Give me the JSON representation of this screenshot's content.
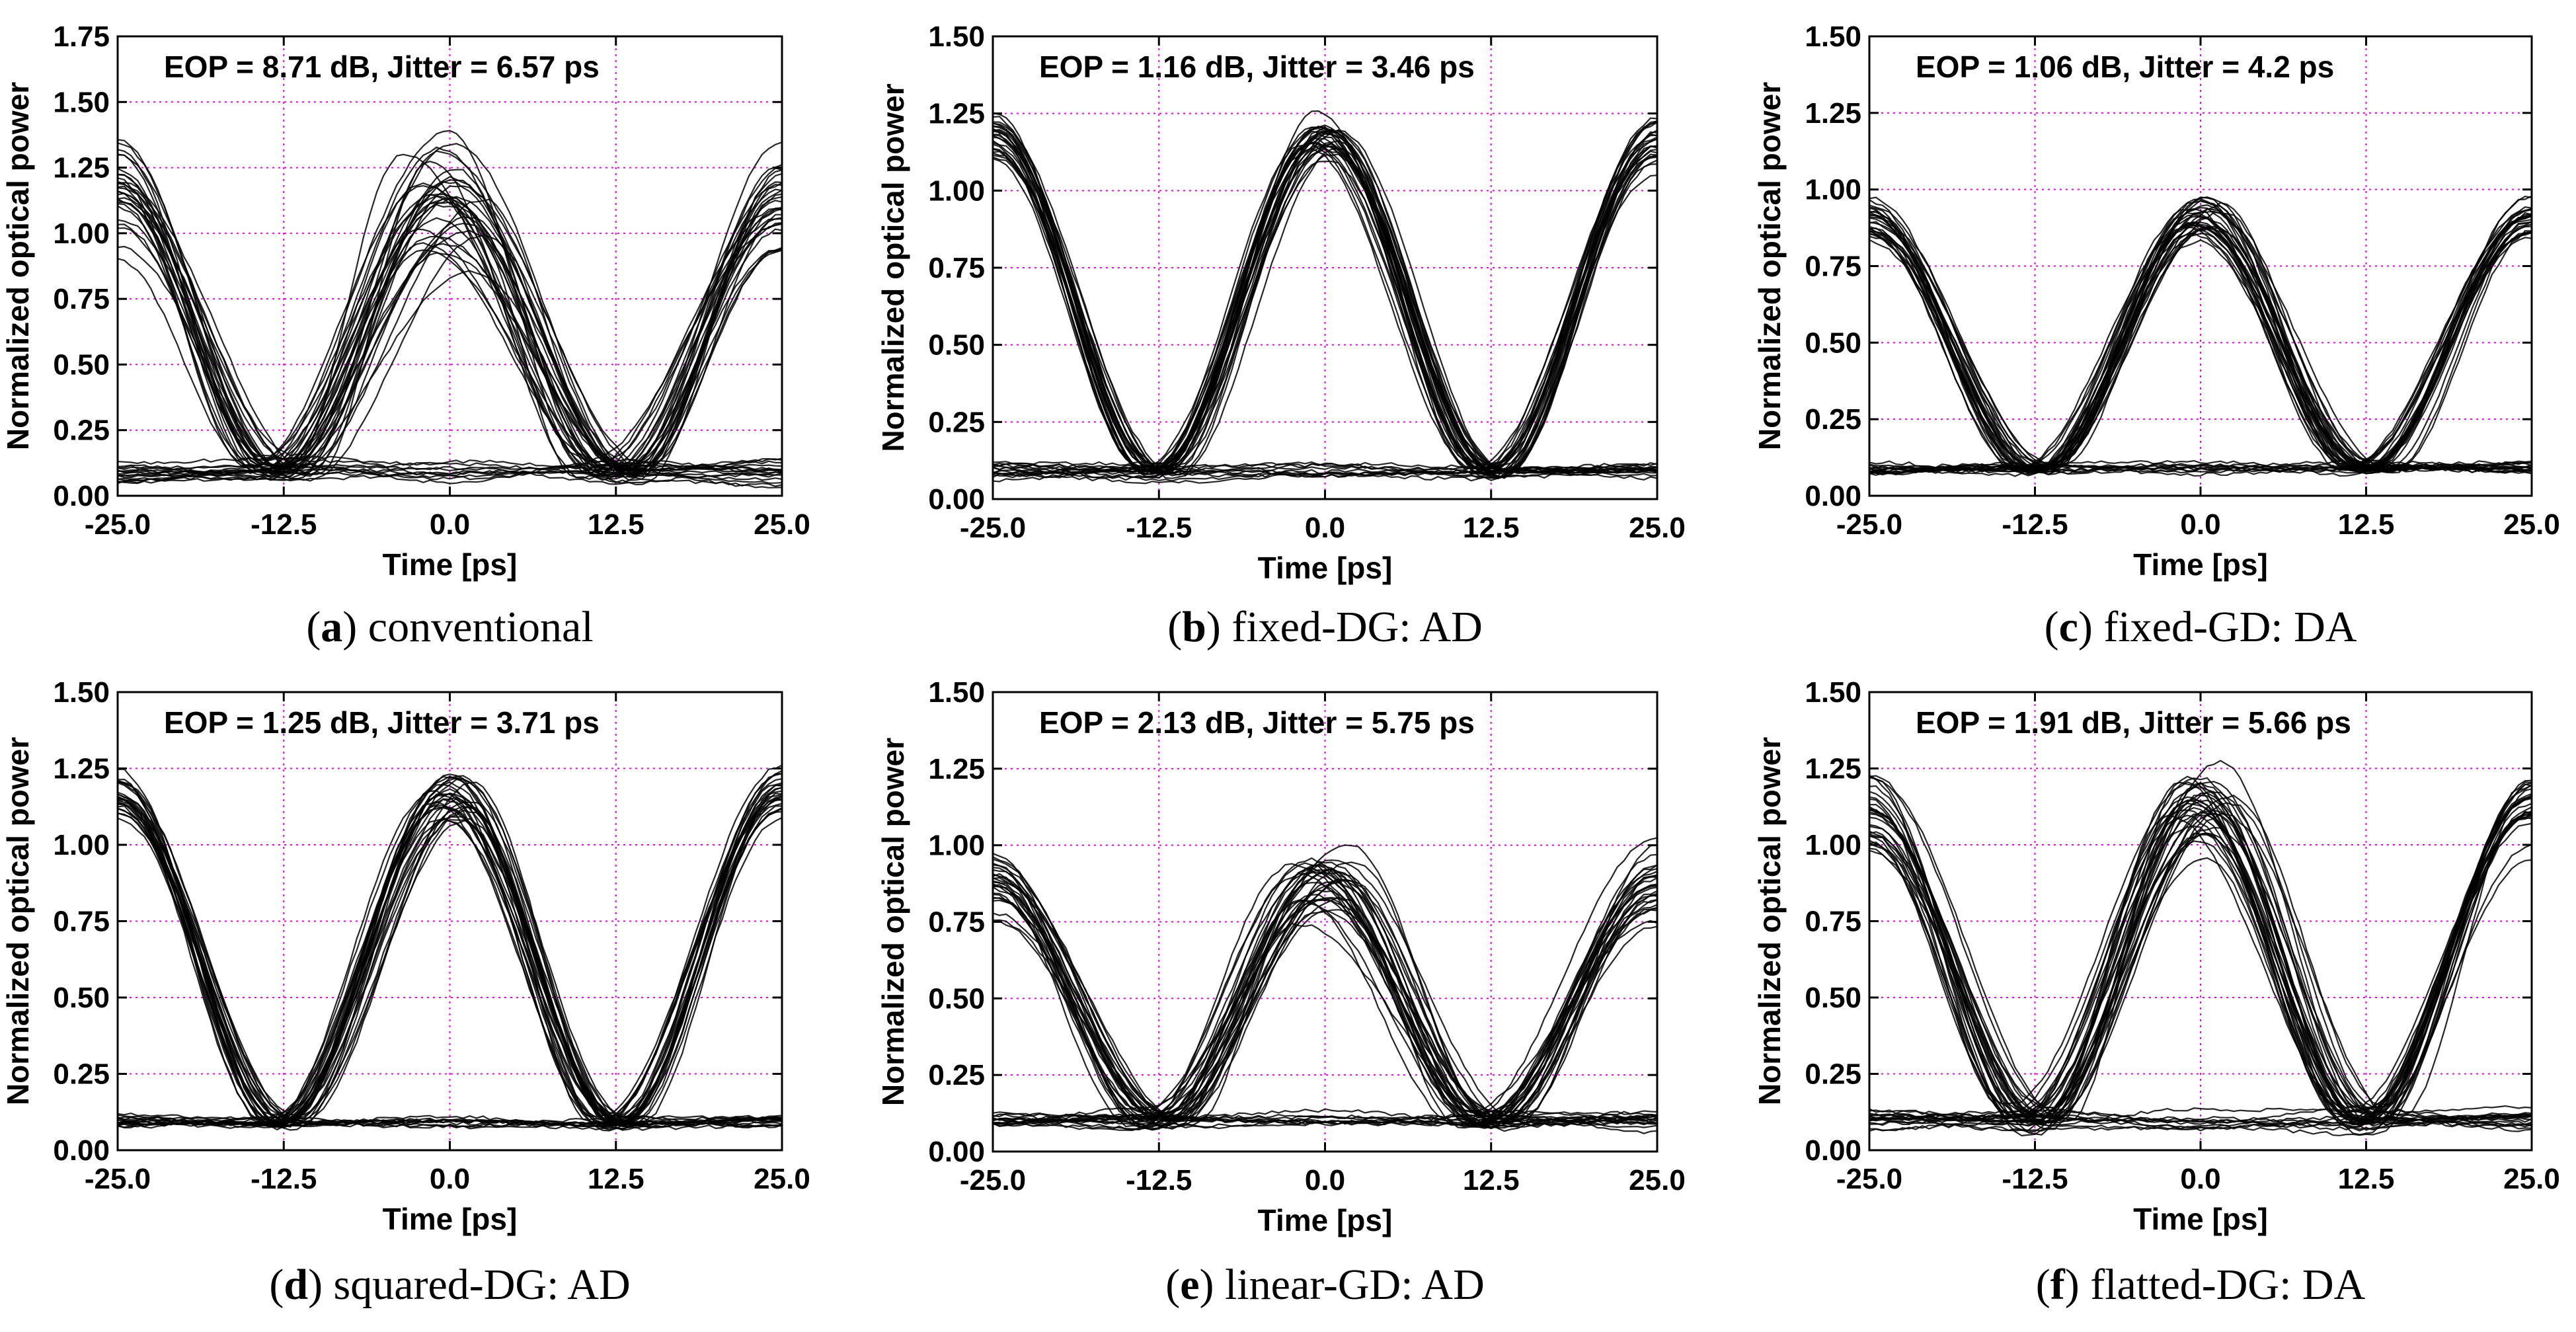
{
  "chart_data": [
    {
      "type": "line",
      "panel": "a",
      "caption_letter": "a",
      "caption_text": "conventional",
      "annotation": "EOP = 8.71 dB, Jitter = 6.57 ps",
      "xlabel": "Time [ps]",
      "ylabel": "Normalized optical power",
      "xlim": [
        -25,
        25
      ],
      "ylim": [
        0,
        1.75
      ],
      "xticks": [
        -25,
        -12.5,
        0,
        12.5,
        25
      ],
      "xtick_labels": [
        "-25.0",
        "-12.5",
        "0.0",
        "12.5",
        "25.0"
      ],
      "yticks": [
        0,
        0.25,
        0.5,
        0.75,
        1.0,
        1.25,
        1.5,
        1.75
      ],
      "ytick_labels": [
        "0.00",
        "0.25",
        "0.50",
        "0.75",
        "1.00",
        "1.25",
        "1.50",
        "1.75"
      ],
      "grid": true,
      "grid_color": "#ee00ee",
      "trace_color": "#000000",
      "eye": {
        "one_level": 1.15,
        "one_spread": 0.55,
        "zero_level": 0.09,
        "zero_spread": 0.12,
        "crossing_level": 0.17,
        "jitter_ps": 6.57,
        "traces": 44
      }
    },
    {
      "type": "line",
      "panel": "b",
      "caption_letter": "b",
      "caption_text": "fixed-DG: AD",
      "annotation": "EOP = 1.16 dB, Jitter = 3.46 ps",
      "xlabel": "Time [ps]",
      "ylabel": "Normalized optical power",
      "xlim": [
        -25,
        25
      ],
      "ylim": [
        0,
        1.5
      ],
      "xticks": [
        -25,
        -12.5,
        0,
        12.5,
        25
      ],
      "xtick_labels": [
        "-25.0",
        "-12.5",
        "0.0",
        "12.5",
        "25.0"
      ],
      "yticks": [
        0,
        0.25,
        0.5,
        0.75,
        1.0,
        1.25,
        1.5
      ],
      "ytick_labels": [
        "0.00",
        "0.25",
        "0.50",
        "0.75",
        "1.00",
        "1.25",
        "1.50"
      ],
      "grid": true,
      "grid_color": "#ee00ee",
      "trace_color": "#000000",
      "eye": {
        "one_level": 1.17,
        "one_spread": 0.2,
        "zero_level": 0.09,
        "zero_spread": 0.06,
        "crossing_level": 0.2,
        "jitter_ps": 3.46,
        "traces": 40
      }
    },
    {
      "type": "line",
      "panel": "c",
      "caption_letter": "c",
      "caption_text": "fixed-GD: DA",
      "annotation": "EOP = 1.06 dB, Jitter = 4.2 ps",
      "xlabel": "Time [ps]",
      "ylabel": "Normalized optical power",
      "xlim": [
        -25,
        25
      ],
      "ylim": [
        0,
        1.5
      ],
      "xticks": [
        -25,
        -12.5,
        0,
        12.5,
        25
      ],
      "xtick_labels": [
        "-25.0",
        "-12.5",
        "0.0",
        "12.5",
        "25.0"
      ],
      "yticks": [
        0,
        0.25,
        0.5,
        0.75,
        1.0,
        1.25,
        1.5
      ],
      "ytick_labels": [
        "0.00",
        "0.25",
        "0.50",
        "0.75",
        "1.00",
        "1.25",
        "1.50"
      ],
      "grid": true,
      "grid_color": "#ee00ee",
      "trace_color": "#000000",
      "eye": {
        "one_level": 0.9,
        "one_spread": 0.16,
        "zero_level": 0.09,
        "zero_spread": 0.05,
        "crossing_level": 0.15,
        "jitter_ps": 4.2,
        "traces": 40
      }
    },
    {
      "type": "line",
      "panel": "d",
      "caption_letter": "d",
      "caption_text": "squared-DG: AD",
      "annotation": "EOP = 1.25 dB, Jitter = 3.71 ps",
      "xlabel": "Time [ps]",
      "ylabel": "Normalized optical power",
      "xlim": [
        -25,
        25
      ],
      "ylim": [
        0,
        1.5
      ],
      "xticks": [
        -25,
        -12.5,
        0,
        12.5,
        25
      ],
      "xtick_labels": [
        "-25.0",
        "-12.5",
        "0.0",
        "12.5",
        "25.0"
      ],
      "yticks": [
        0,
        0.25,
        0.5,
        0.75,
        1.0,
        1.25,
        1.5
      ],
      "ytick_labels": [
        "0.00",
        "0.25",
        "0.50",
        "0.75",
        "1.00",
        "1.25",
        "1.50"
      ],
      "grid": true,
      "grid_color": "#ee00ee",
      "trace_color": "#000000",
      "eye": {
        "one_level": 1.16,
        "one_spread": 0.22,
        "zero_level": 0.09,
        "zero_spread": 0.06,
        "crossing_level": 0.19,
        "jitter_ps": 3.71,
        "traces": 40
      }
    },
    {
      "type": "line",
      "panel": "e",
      "caption_letter": "e",
      "caption_text": "linear-GD: AD",
      "annotation": "EOP = 2.13 dB, Jitter = 5.75 ps",
      "xlabel": "Time [ps]",
      "ylabel": "Normalized optical power",
      "xlim": [
        -25,
        25
      ],
      "ylim": [
        0,
        1.5
      ],
      "xticks": [
        -25,
        -12.5,
        0,
        12.5,
        25
      ],
      "xtick_labels": [
        "-25.0",
        "-12.5",
        "0.0",
        "12.5",
        "25.0"
      ],
      "yticks": [
        0,
        0.25,
        0.5,
        0.75,
        1.0,
        1.25,
        1.5
      ],
      "ytick_labels": [
        "0.00",
        "0.25",
        "0.50",
        "0.75",
        "1.00",
        "1.25",
        "1.50"
      ],
      "grid": true,
      "grid_color": "#ee00ee",
      "trace_color": "#000000",
      "eye": {
        "one_level": 0.88,
        "one_spread": 0.3,
        "zero_level": 0.1,
        "zero_spread": 0.08,
        "crossing_level": 0.15,
        "jitter_ps": 5.75,
        "traces": 42
      }
    },
    {
      "type": "line",
      "panel": "f",
      "caption_letter": "f",
      "caption_text": "flatted-DG: DA",
      "annotation": "EOP = 1.91 dB, Jitter = 5.66 ps",
      "xlabel": "Time [ps]",
      "ylabel": "Normalized optical power",
      "xlim": [
        -25,
        25
      ],
      "ylim": [
        0,
        1.5
      ],
      "xticks": [
        -25,
        -12.5,
        0,
        12.5,
        25
      ],
      "xtick_labels": [
        "-25.0",
        "-12.5",
        "0.0",
        "12.5",
        "25.0"
      ],
      "yticks": [
        0,
        0.25,
        0.5,
        0.75,
        1.0,
        1.25,
        1.5
      ],
      "ytick_labels": [
        "0.00",
        "0.25",
        "0.50",
        "0.75",
        "1.00",
        "1.25",
        "1.50"
      ],
      "grid": true,
      "grid_color": "#ee00ee",
      "trace_color": "#000000",
      "eye": {
        "one_level": 1.12,
        "one_spread": 0.32,
        "zero_level": 0.1,
        "zero_spread": 0.1,
        "crossing_level": 0.17,
        "jitter_ps": 5.66,
        "traces": 44
      }
    }
  ]
}
